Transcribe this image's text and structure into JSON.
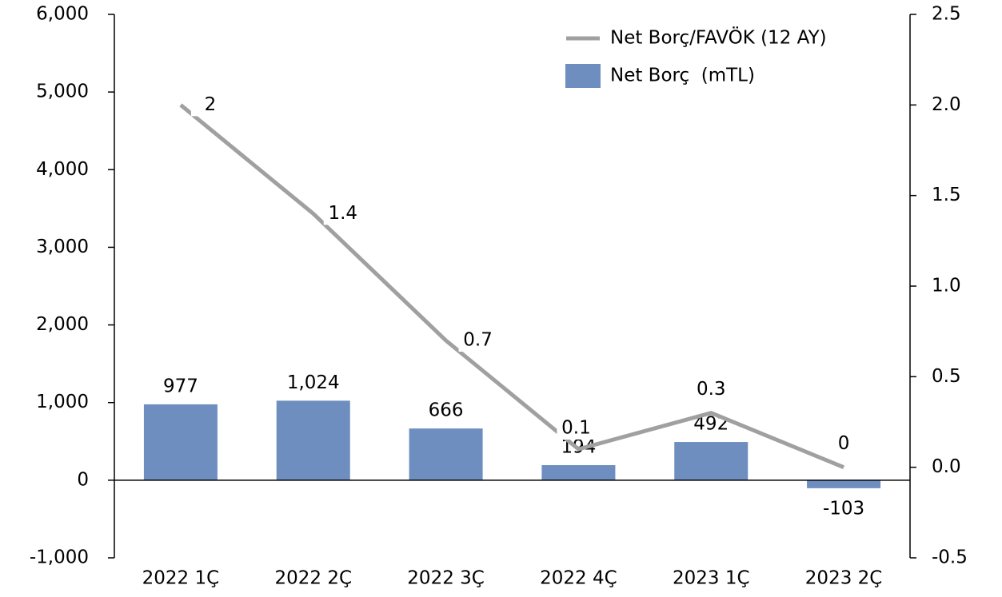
{
  "chart_data": {
    "type": "bar-line",
    "categories": [
      "2022 1Ç",
      "2022 2Ç",
      "2022 3Ç",
      "2022 4Ç",
      "2023 1Ç",
      "2023 2Ç"
    ],
    "series": [
      {
        "name": "Net Borç/FAVÖK (12 AY)",
        "type": "line",
        "axis": "y2",
        "color": "#a0a0a0",
        "values": [
          2.0,
          1.4,
          0.7,
          0.1,
          0.3,
          0.0
        ]
      },
      {
        "name": "Net Borç  (mTL)",
        "type": "bar",
        "color": "#6d8ebf",
        "values": [
          977,
          1024,
          666,
          194,
          492,
          -103
        ],
        "value_labels": [
          "977",
          "1,024",
          "666",
          "194",
          "492",
          "-103"
        ]
      }
    ],
    "ylim": [
      -1000,
      6000
    ],
    "yticks": [
      {
        "value": -1000,
        "label": "-1,000"
      },
      0,
      {
        "value": 1000,
        "label": "1,000"
      },
      {
        "value": 2000,
        "label": "2,000"
      },
      {
        "value": 3000,
        "label": "3,000"
      },
      {
        "value": 4000,
        "label": "4,000"
      },
      {
        "value": 5000,
        "label": "5,000"
      },
      {
        "value": 6000,
        "label": "6,000"
      }
    ],
    "y2lim": [
      -0.5,
      2.5
    ],
    "y2ticks": [
      -0.5,
      {
        "value": 0,
        "label": "0.0"
      },
      0.5,
      {
        "value": 1,
        "label": "1.0"
      },
      1.5,
      {
        "value": 2,
        "label": "2.0"
      },
      2.5
    ],
    "grid": false,
    "legend": "top-right"
  }
}
